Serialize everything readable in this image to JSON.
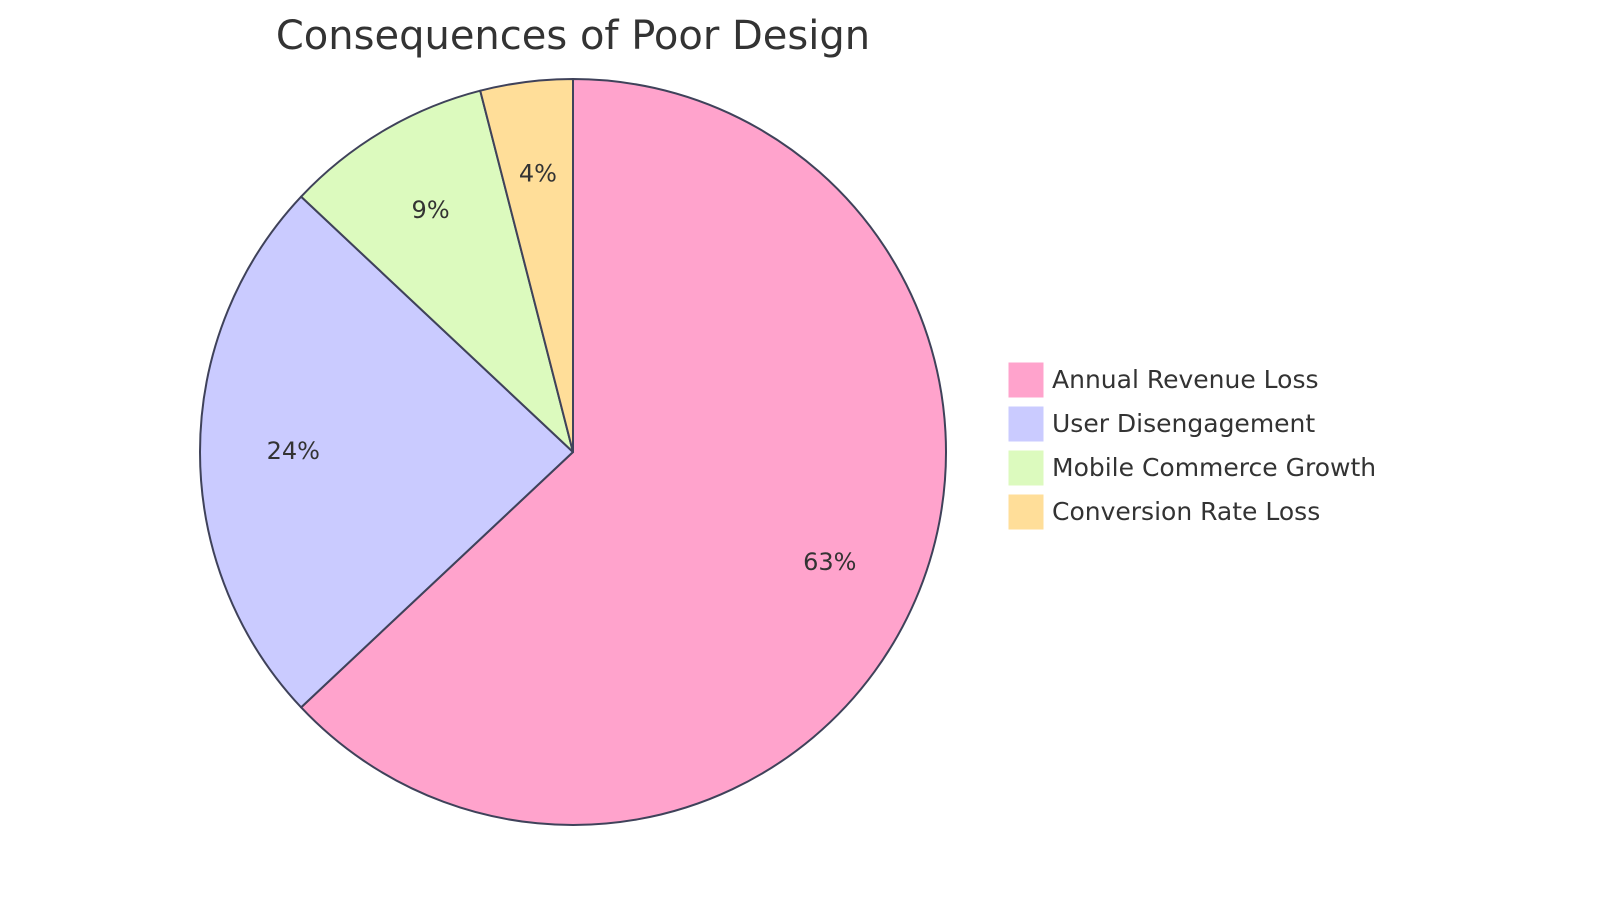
{
  "chart_data": {
    "type": "pie",
    "title": "Consequences of Poor Design",
    "categories": [
      "Annual Revenue Loss",
      "User Disengagement",
      "Mobile Commerce Growth",
      "Conversion Rate Loss"
    ],
    "values": [
      63,
      24,
      9,
      4
    ],
    "value_labels": [
      "63%",
      "24%",
      "9%",
      "4%"
    ],
    "colors": [
      "#FFA3CC",
      "#CACBFF",
      "#DCFABE",
      "#FFDE99"
    ],
    "stroke_color": "#3F425A",
    "legend_position": "right"
  }
}
